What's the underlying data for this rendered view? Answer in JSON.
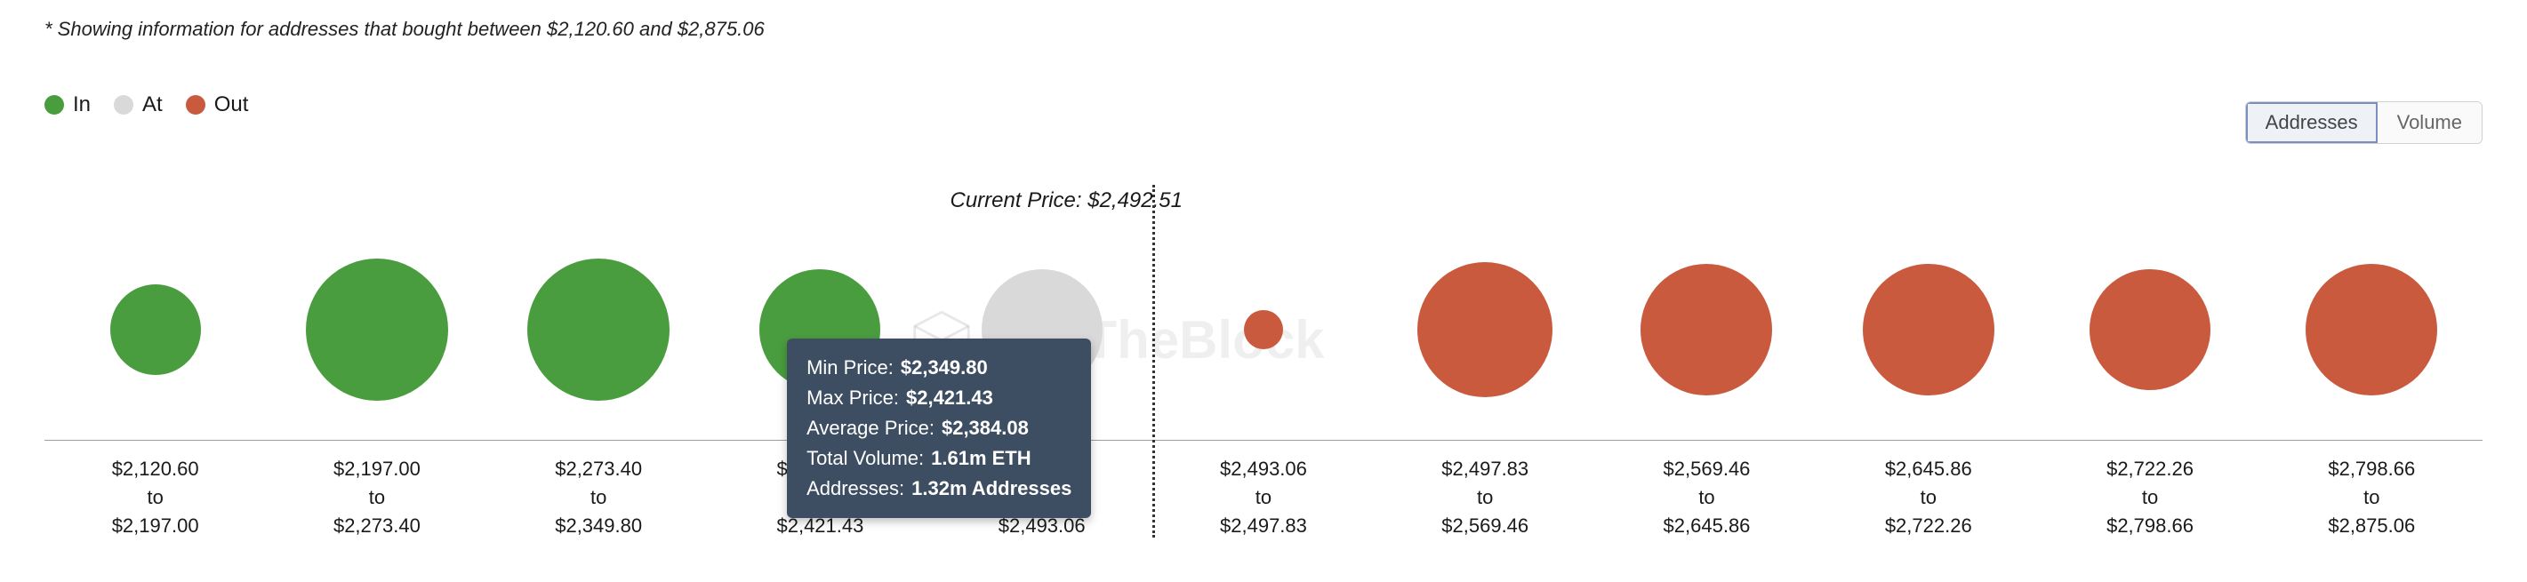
{
  "note": "* Showing information for addresses that bought between $2,120.60 and $2,875.06",
  "legend": [
    {
      "label": "In",
      "color": "#4a9d3e"
    },
    {
      "label": "At",
      "color": "#d9d9d9"
    },
    {
      "label": "Out",
      "color": "#ca5a3e"
    }
  ],
  "viewToggle": {
    "options": [
      "Addresses",
      "Volume"
    ],
    "active": "Addresses"
  },
  "currentPrice": {
    "label": "Current Price:",
    "value": "$2,492.51"
  },
  "colors": {
    "in": "#4a9d3e",
    "at": "#d9d9d9",
    "out": "#ca5a3e",
    "axis": "#9e9e9e",
    "tooltipBg": "#3d4e63",
    "background": "#ffffff"
  },
  "chart": {
    "type": "bubble-row",
    "maxDiameter": 160,
    "dividerAfterIndex": 4,
    "highlightedIndex": 3,
    "watermarkText": "IntoTheBlock",
    "points": [
      {
        "from": "$2,120.60",
        "to": "$2,197.00",
        "category": "in",
        "size": 102
      },
      {
        "from": "$2,197.00",
        "to": "$2,273.40",
        "category": "in",
        "size": 160
      },
      {
        "from": "$2,273.40",
        "to": "$2,349.80",
        "category": "in",
        "size": 160
      },
      {
        "from": "$2,349.80",
        "to": "$2,421.43",
        "category": "in",
        "size": 136
      },
      {
        "from": "$2,421.43",
        "to": "$2,493.06",
        "category": "at",
        "size": 136
      },
      {
        "from": "$2,493.06",
        "to": "$2,497.83",
        "category": "out",
        "size": 44
      },
      {
        "from": "$2,497.83",
        "to": "$2,569.46",
        "category": "out",
        "size": 152
      },
      {
        "from": "$2,569.46",
        "to": "$2,645.86",
        "category": "out",
        "size": 148
      },
      {
        "from": "$2,645.86",
        "to": "$2,722.26",
        "category": "out",
        "size": 148
      },
      {
        "from": "$2,722.26",
        "to": "$2,798.66",
        "category": "out",
        "size": 136
      },
      {
        "from": "$2,798.66",
        "to": "$2,875.06",
        "category": "out",
        "size": 148
      }
    ]
  },
  "tooltip": {
    "atIndex": 3,
    "rows": [
      {
        "label": "Min Price:",
        "value": "$2,349.80"
      },
      {
        "label": "Max Price:",
        "value": "$2,421.43"
      },
      {
        "label": "Average Price:",
        "value": "$2,384.08"
      },
      {
        "label": "Total Volume:",
        "value": "1.61m ETH"
      },
      {
        "label": "Addresses:",
        "value": "1.32m Addresses"
      }
    ]
  }
}
